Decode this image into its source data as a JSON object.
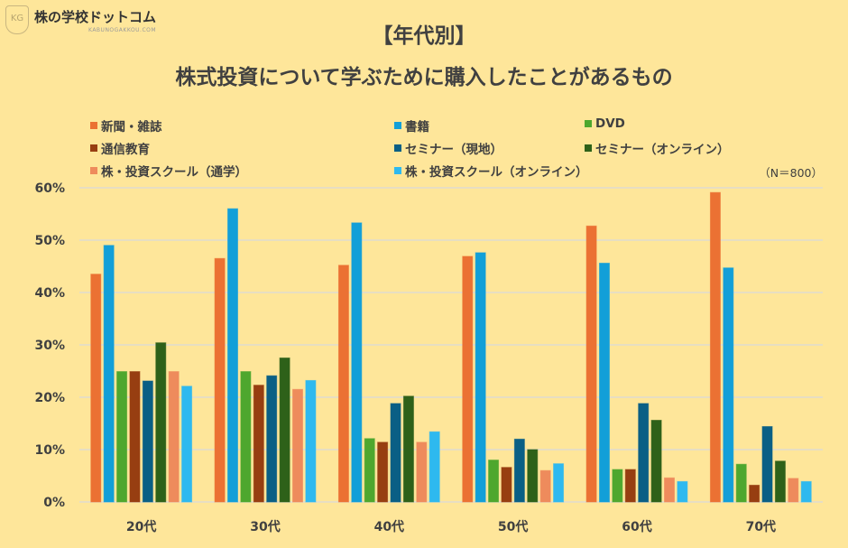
{
  "logo": {
    "text": "株の学校ドットコム",
    "sub": "KABUNOGAKKOU.COM",
    "mark": "KG"
  },
  "chart_data": {
    "type": "bar",
    "title": "【年代別】",
    "subtitle": "株式投資について学ぶために購入したことがあるもの",
    "note": "（N＝800）",
    "categories": [
      "20代",
      "30代",
      "40代",
      "50代",
      "60代",
      "70代"
    ],
    "ylim": [
      0,
      60
    ],
    "yticks": [
      "0%",
      "10%",
      "20%",
      "30%",
      "40%",
      "50%",
      "60%"
    ],
    "grid": true,
    "legend_placement": "top",
    "series": [
      {
        "name": "新聞・雑誌",
        "color": "#EB7133",
        "values": [
          43.5,
          46.5,
          45.2,
          46.9,
          52.7,
          59.1
        ]
      },
      {
        "name": "書籍",
        "color": "#129FD8",
        "values": [
          49.0,
          56.0,
          53.3,
          47.6,
          45.6,
          44.7
        ]
      },
      {
        "name": "DVD",
        "color": "#4EA72E",
        "values": [
          24.9,
          24.9,
          12.1,
          8.0,
          6.2,
          7.2
        ]
      },
      {
        "name": "通信教育",
        "color": "#973E11",
        "values": [
          24.9,
          22.3,
          11.4,
          6.6,
          6.2,
          3.2
        ]
      },
      {
        "name": "セミナー（現地）",
        "color": "#0A5F85",
        "values": [
          23.1,
          24.1,
          18.8,
          12.0,
          18.8,
          14.4
        ]
      },
      {
        "name": "セミナー（オンライン）",
        "color": "#2E6119",
        "values": [
          30.4,
          27.5,
          20.2,
          10.0,
          15.6,
          7.8
        ]
      },
      {
        "name": "株・投資スクール（通学）",
        "color": "#EE8B5C",
        "values": [
          24.9,
          21.5,
          11.4,
          6.0,
          4.6,
          4.5
        ]
      },
      {
        "name": "株・投資スクール（オンライン）",
        "color": "#2EB9EF",
        "values": [
          22.1,
          23.2,
          13.4,
          7.3,
          3.9,
          3.9
        ]
      }
    ]
  }
}
